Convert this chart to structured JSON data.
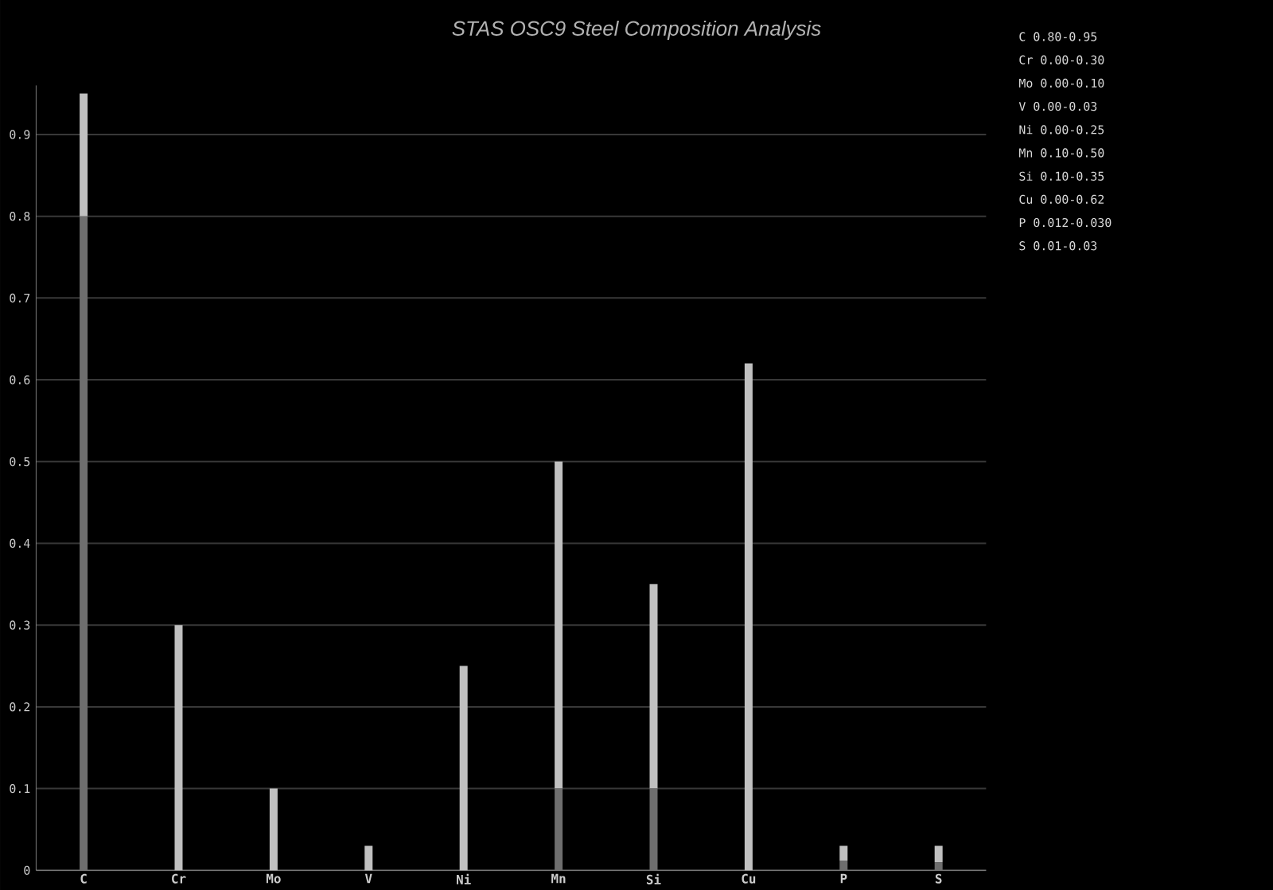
{
  "chart_data": {
    "type": "bar",
    "title": "STAS OSC9 Steel Composition Analysis",
    "categories": [
      "C",
      "Cr",
      "Mo",
      "V",
      "Ni",
      "Mn",
      "Si",
      "Cu",
      "P",
      "S"
    ],
    "stacked": true,
    "series": [
      {
        "color": "#6e6e6e",
        "values": [
          0.8,
          0,
          0,
          0,
          0,
          0.1,
          0.1,
          0,
          0.012,
          0.01
        ]
      },
      {
        "color": "#c0c0c0",
        "values": [
          0.15,
          0.3,
          0.1,
          0.03,
          0.25,
          0.4,
          0.25,
          0.62,
          0.018,
          0.02
        ]
      }
    ],
    "ylim": [
      0,
      0.96
    ],
    "yticks": [
      0,
      0.1,
      0.2,
      0.3,
      0.4,
      0.5,
      0.6,
      0.7,
      0.8,
      0.9
    ],
    "grid": "y",
    "annotations": [
      "C  0.80-0.95",
      "Cr 0.00-0.30",
      "Mo 0.00-0.10",
      "V  0.00-0.03",
      "Ni 0.00-0.25",
      "Mn 0.10-0.50",
      "Si 0.10-0.35",
      "Cu 0.00-0.62",
      "P  0.012-0.030",
      "S  0.01-0.03"
    ]
  }
}
